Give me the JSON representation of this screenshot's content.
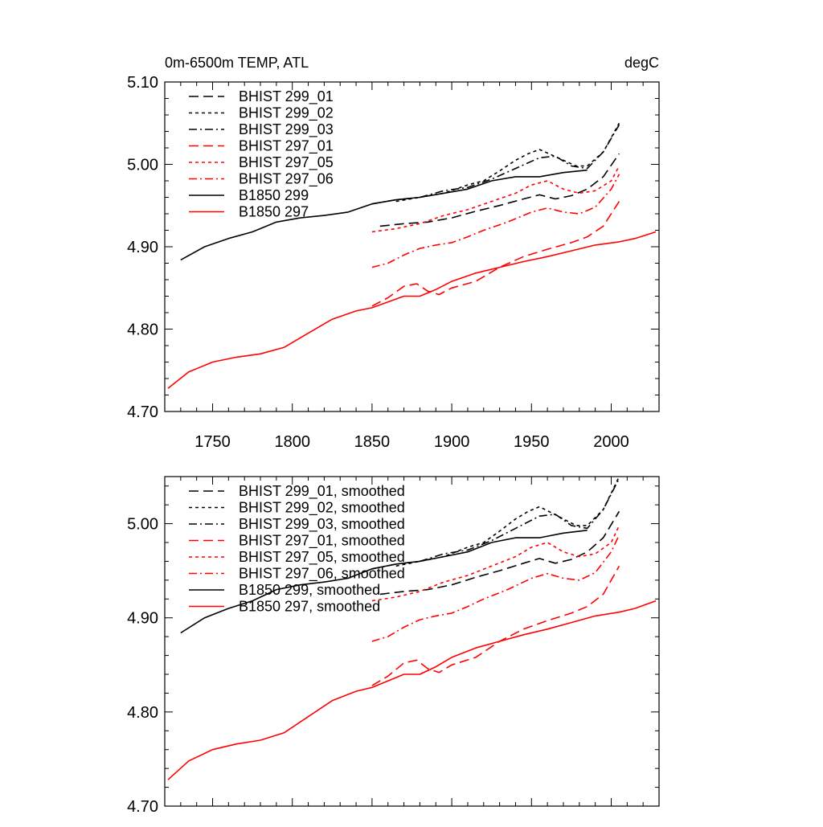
{
  "chart_data": [
    {
      "type": "line",
      "title": "0m-6500m TEMP, ATL",
      "units": "degC",
      "xlabel": "",
      "ylabel": "",
      "xlim": [
        1720,
        2030
      ],
      "ylim": [
        4.7,
        5.1
      ],
      "xticks": [
        1750,
        1800,
        1850,
        1900,
        1950,
        2000
      ],
      "xtick_labels": [
        "1750",
        "1800",
        "1850",
        "1900",
        "1950",
        "2000"
      ],
      "yticks": [
        4.7,
        4.8,
        4.9,
        5.0,
        5.1
      ],
      "ytick_labels": [
        "4.70",
        "4.80",
        "4.90",
        "5.00",
        "5.10"
      ],
      "legend_position": "top-left",
      "series": [
        {
          "name": "BHIST 299_01",
          "color": "#000000",
          "dash": "long-dash",
          "x": [
            1855,
            1870,
            1885,
            1900,
            1915,
            1930,
            1945,
            1955,
            1965,
            1975,
            1985,
            1995,
            2005
          ],
          "y": [
            4.925,
            4.928,
            4.93,
            4.935,
            4.943,
            4.95,
            4.958,
            4.963,
            4.958,
            4.962,
            4.97,
            4.985,
            5.013
          ]
        },
        {
          "name": "BHIST 299_02",
          "color": "#000000",
          "dash": "short-dash",
          "x": [
            1865,
            1880,
            1895,
            1910,
            1920,
            1930,
            1940,
            1948,
            1955,
            1962,
            1970,
            1978,
            1985,
            1995,
            2005
          ],
          "y": [
            4.955,
            4.96,
            4.965,
            4.975,
            4.98,
            4.992,
            5.005,
            5.013,
            5.018,
            5.012,
            5.005,
            4.998,
            4.998,
            5.015,
            5.05
          ]
        },
        {
          "name": "BHIST 299_03",
          "color": "#000000",
          "dash": "dash-dot",
          "x": [
            1850,
            1865,
            1880,
            1895,
            1910,
            1925,
            1940,
            1955,
            1965,
            1975,
            1985,
            1995,
            2005
          ],
          "y": [
            4.952,
            4.957,
            4.96,
            4.968,
            4.972,
            4.982,
            4.995,
            5.008,
            5.01,
            4.998,
            4.995,
            5.015,
            5.048
          ]
        },
        {
          "name": "BHIST 297_01",
          "color": "#ff0000",
          "dash": "long-dash",
          "x": [
            1850,
            1860,
            1870,
            1878,
            1885,
            1892,
            1900,
            1915,
            1930,
            1945,
            1960,
            1975,
            1985,
            1995,
            2005
          ],
          "y": [
            4.828,
            4.838,
            4.852,
            4.855,
            4.846,
            4.842,
            4.85,
            4.858,
            4.875,
            4.888,
            4.897,
            4.905,
            4.912,
            4.925,
            4.955
          ]
        },
        {
          "name": "BHIST 297_05",
          "color": "#ff0000",
          "dash": "short-dash",
          "x": [
            1850,
            1865,
            1880,
            1895,
            1910,
            1925,
            1940,
            1950,
            1960,
            1970,
            1980,
            1990,
            2000,
            2005
          ],
          "y": [
            4.918,
            4.922,
            4.928,
            4.938,
            4.945,
            4.955,
            4.965,
            4.975,
            4.98,
            4.97,
            4.965,
            4.968,
            4.98,
            4.998
          ]
        },
        {
          "name": "BHIST 297_06",
          "color": "#ff0000",
          "dash": "dash-dot",
          "x": [
            1850,
            1860,
            1870,
            1880,
            1890,
            1900,
            1910,
            1920,
            1935,
            1950,
            1960,
            1970,
            1980,
            1990,
            2000,
            2005
          ],
          "y": [
            4.875,
            4.88,
            4.89,
            4.898,
            4.902,
            4.905,
            4.912,
            4.92,
            4.93,
            4.942,
            4.947,
            4.942,
            4.94,
            4.948,
            4.97,
            4.988
          ]
        },
        {
          "name": "B1850 299",
          "color": "#000000",
          "dash": "solid",
          "x": [
            1730,
            1745,
            1760,
            1775,
            1790,
            1805,
            1820,
            1835,
            1850,
            1865,
            1880,
            1895,
            1910,
            1925,
            1940,
            1955,
            1970,
            1985
          ],
          "y": [
            4.884,
            4.9,
            4.91,
            4.918,
            4.93,
            4.935,
            4.938,
            4.942,
            4.952,
            4.957,
            4.96,
            4.965,
            4.97,
            4.98,
            4.985,
            4.985,
            4.99,
            4.993
          ]
        },
        {
          "name": "B1850 297",
          "color": "#ff0000",
          "dash": "solid",
          "x": [
            1722,
            1735,
            1750,
            1765,
            1780,
            1795,
            1810,
            1825,
            1840,
            1850,
            1860,
            1870,
            1880,
            1890,
            1900,
            1915,
            1930,
            1945,
            1960,
            1975,
            1990,
            2005,
            2015,
            2028
          ],
          "y": [
            4.728,
            4.748,
            4.76,
            4.766,
            4.77,
            4.778,
            4.795,
            4.812,
            4.822,
            4.826,
            4.833,
            4.84,
            4.84,
            4.848,
            4.858,
            4.868,
            4.875,
            4.882,
            4.888,
            4.895,
            4.902,
            4.906,
            4.91,
            4.918
          ]
        }
      ]
    },
    {
      "type": "line",
      "title": "",
      "xlabel": "",
      "ylabel": "",
      "xlim": [
        1720,
        2030
      ],
      "ylim": [
        4.7,
        5.05
      ],
      "xticks": [
        1750,
        1800,
        1850,
        1900,
        1950,
        2000
      ],
      "yticks": [
        4.7,
        4.8,
        4.9,
        5.0
      ],
      "ytick_labels": [
        "4.70",
        "4.80",
        "4.90",
        "5.00"
      ],
      "legend_position": "top-left",
      "series": [
        {
          "name": "BHIST 299_01, smoothed",
          "color": "#000000",
          "dash": "long-dash",
          "x": [
            1855,
            1870,
            1885,
            1900,
            1915,
            1930,
            1945,
            1955,
            1965,
            1975,
            1985,
            1995,
            2005
          ],
          "y": [
            4.925,
            4.928,
            4.93,
            4.935,
            4.943,
            4.95,
            4.958,
            4.963,
            4.958,
            4.962,
            4.97,
            4.985,
            5.013
          ]
        },
        {
          "name": "BHIST 299_02, smoothed",
          "color": "#000000",
          "dash": "short-dash",
          "x": [
            1865,
            1880,
            1895,
            1910,
            1920,
            1930,
            1940,
            1948,
            1955,
            1962,
            1970,
            1978,
            1985,
            1995,
            2005
          ],
          "y": [
            4.955,
            4.96,
            4.965,
            4.975,
            4.98,
            4.992,
            5.005,
            5.013,
            5.018,
            5.012,
            5.005,
            4.998,
            4.998,
            5.015,
            5.05
          ]
        },
        {
          "name": "BHIST 299_03, smoothed",
          "color": "#000000",
          "dash": "dash-dot",
          "x": [
            1850,
            1865,
            1880,
            1895,
            1910,
            1925,
            1940,
            1955,
            1965,
            1975,
            1985,
            1995,
            2005
          ],
          "y": [
            4.952,
            4.957,
            4.96,
            4.968,
            4.972,
            4.982,
            4.995,
            5.008,
            5.01,
            4.998,
            4.995,
            5.015,
            5.048
          ]
        },
        {
          "name": "BHIST 297_01, smoothed",
          "color": "#ff0000",
          "dash": "long-dash",
          "x": [
            1850,
            1860,
            1870,
            1878,
            1885,
            1892,
            1900,
            1915,
            1930,
            1945,
            1960,
            1975,
            1985,
            1995,
            2005
          ],
          "y": [
            4.828,
            4.838,
            4.852,
            4.855,
            4.846,
            4.842,
            4.85,
            4.858,
            4.875,
            4.888,
            4.897,
            4.905,
            4.912,
            4.925,
            4.955
          ]
        },
        {
          "name": "BHIST 297_05, smoothed",
          "color": "#ff0000",
          "dash": "short-dash",
          "x": [
            1850,
            1865,
            1880,
            1895,
            1910,
            1925,
            1940,
            1950,
            1960,
            1970,
            1980,
            1990,
            2000,
            2005
          ],
          "y": [
            4.918,
            4.922,
            4.928,
            4.938,
            4.945,
            4.955,
            4.965,
            4.975,
            4.98,
            4.97,
            4.965,
            4.968,
            4.98,
            4.998
          ]
        },
        {
          "name": "BHIST 297_06, smoothed",
          "color": "#ff0000",
          "dash": "dash-dot",
          "x": [
            1850,
            1860,
            1870,
            1880,
            1890,
            1900,
            1910,
            1920,
            1935,
            1950,
            1960,
            1970,
            1980,
            1990,
            2000,
            2005
          ],
          "y": [
            4.875,
            4.88,
            4.89,
            4.898,
            4.902,
            4.905,
            4.912,
            4.92,
            4.93,
            4.942,
            4.947,
            4.942,
            4.94,
            4.948,
            4.97,
            4.988
          ]
        },
        {
          "name": "B1850 299, smoothed",
          "color": "#000000",
          "dash": "solid",
          "x": [
            1730,
            1745,
            1760,
            1775,
            1790,
            1805,
            1820,
            1835,
            1850,
            1865,
            1880,
            1895,
            1910,
            1925,
            1940,
            1955,
            1970,
            1985
          ],
          "y": [
            4.884,
            4.9,
            4.91,
            4.918,
            4.93,
            4.935,
            4.938,
            4.942,
            4.952,
            4.957,
            4.96,
            4.965,
            4.97,
            4.98,
            4.985,
            4.985,
            4.99,
            4.993
          ]
        },
        {
          "name": "B1850 297, smoothed",
          "color": "#ff0000",
          "dash": "solid",
          "x": [
            1722,
            1735,
            1750,
            1765,
            1780,
            1795,
            1810,
            1825,
            1840,
            1850,
            1860,
            1870,
            1880,
            1890,
            1900,
            1915,
            1930,
            1945,
            1960,
            1975,
            1990,
            2005,
            2015,
            2028
          ],
          "y": [
            4.728,
            4.748,
            4.76,
            4.766,
            4.77,
            4.778,
            4.795,
            4.812,
            4.822,
            4.826,
            4.833,
            4.84,
            4.84,
            4.848,
            4.858,
            4.868,
            4.875,
            4.882,
            4.888,
            4.895,
            4.902,
            4.906,
            4.91,
            4.918
          ]
        }
      ]
    }
  ]
}
